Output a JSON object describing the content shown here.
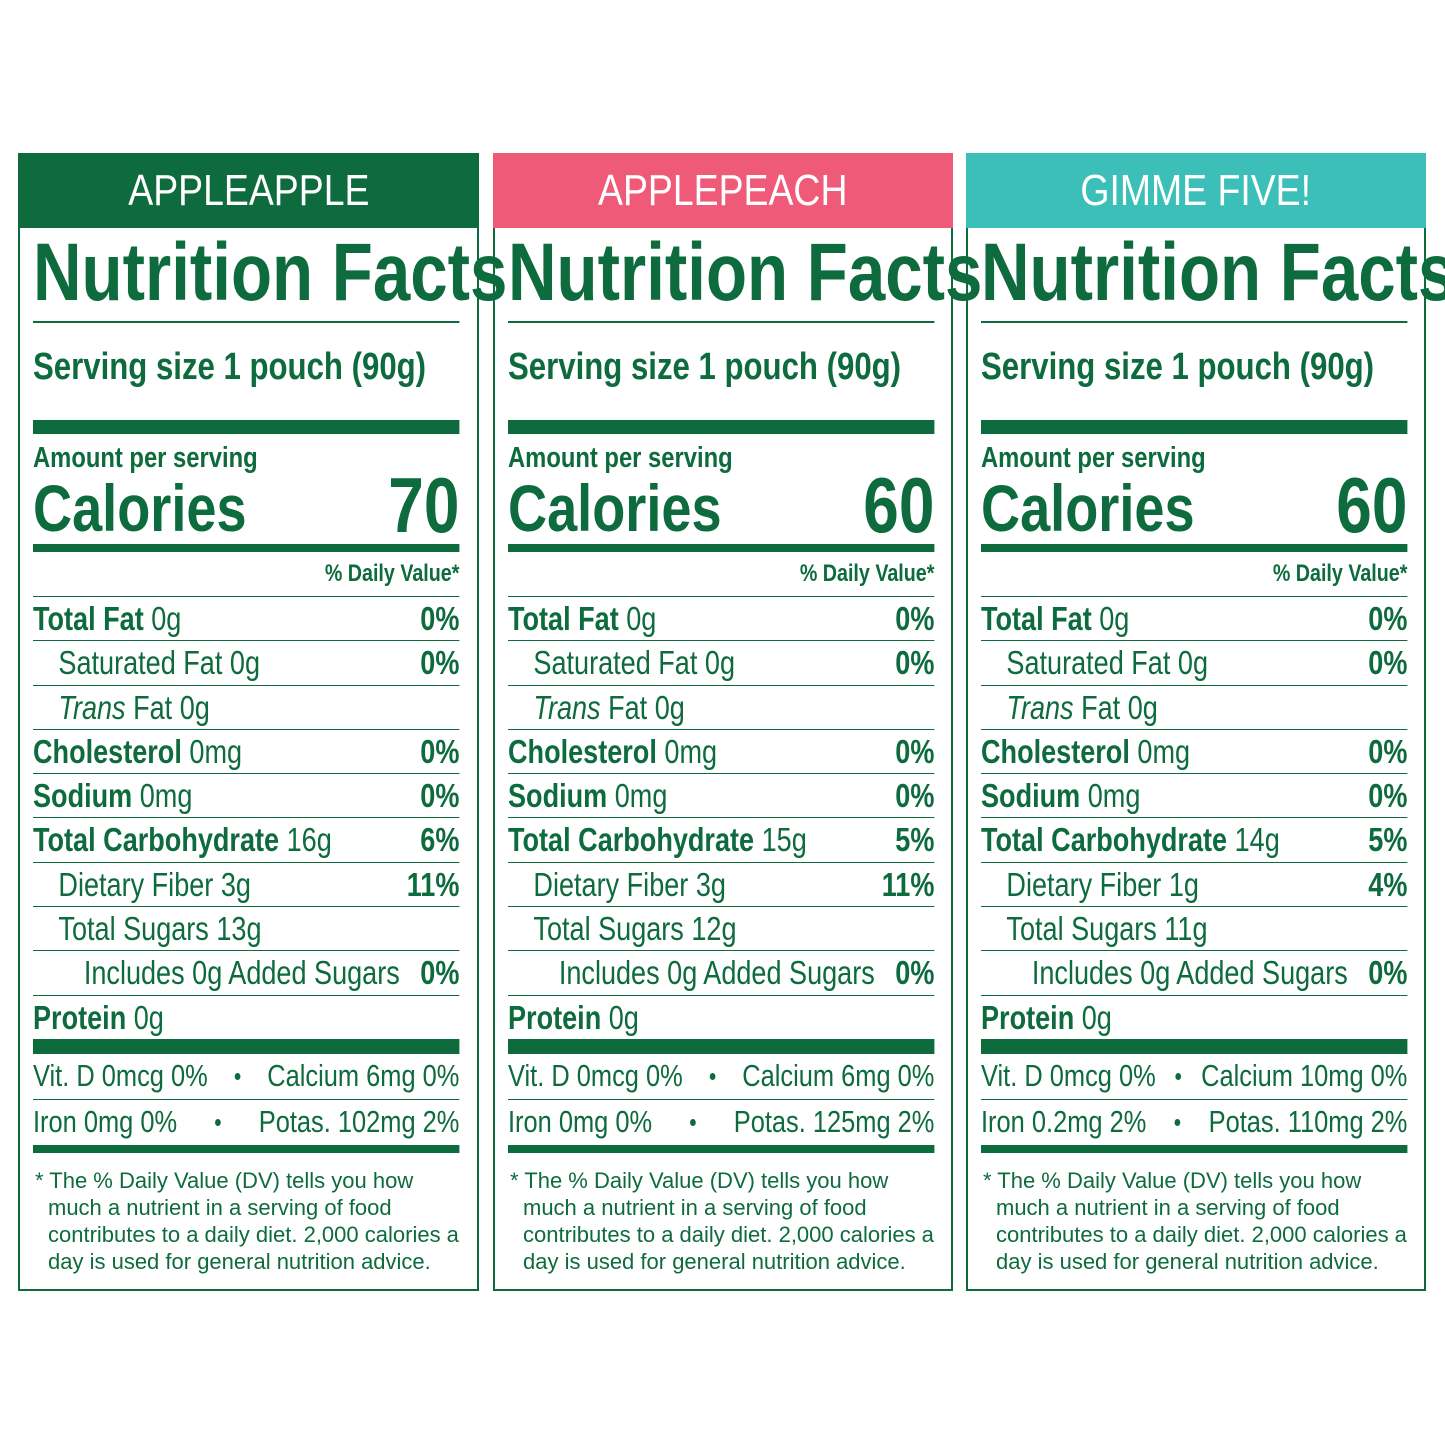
{
  "panels": [
    {
      "header": "APPLEAPPLE",
      "title": "Nutrition Facts",
      "serving_size": "Serving size 1 pouch (90g)",
      "amount_per_serving": "Amount per serving",
      "calories_label": "Calories",
      "calories": 70,
      "dv_header": "% Daily Value*",
      "rows": [
        {
          "label": "Total Fat",
          "amount": "0g",
          "dv": "0%"
        },
        {
          "label": "Saturated Fat",
          "amount": "0g",
          "dv": "0%"
        },
        {
          "label": "Trans Fat",
          "amount": "0g"
        },
        {
          "label": "Cholesterol",
          "amount": "0mg",
          "dv": "0%"
        },
        {
          "label": "Sodium",
          "amount": "0mg",
          "dv": "0%"
        },
        {
          "label": "Total Carbohydrate",
          "amount": "16g",
          "dv": "6%"
        },
        {
          "label": "Dietary Fiber",
          "amount": "3g",
          "dv": "11%"
        },
        {
          "label": "Total Sugars",
          "amount": "13g"
        },
        {
          "label": "Includes 0g Added Sugars",
          "dv": "0%"
        },
        {
          "label": "Protein",
          "amount": "0g"
        }
      ],
      "vitamins": [
        [
          "Vit. D 0mcg 0%",
          "Calcium 6mg 0%"
        ],
        [
          "Iron 0mg 0%",
          "Potas. 102mg 2%"
        ]
      ],
      "footnote": "* The % Daily Value (DV) tells you how much a nutrient in a serving of food contributes to a daily diet. 2,000 calories a day is used for general nutrition advice."
    },
    {
      "header": "APPLEPEACH",
      "title": "Nutrition Facts",
      "serving_size": "Serving size 1 pouch (90g)",
      "amount_per_serving": "Amount per serving",
      "calories_label": "Calories",
      "calories": 60,
      "dv_header": "% Daily Value*",
      "rows": [
        {
          "label": "Total Fat",
          "amount": "0g",
          "dv": "0%"
        },
        {
          "label": "Saturated Fat",
          "amount": "0g",
          "dv": "0%"
        },
        {
          "label": "Trans Fat",
          "amount": "0g"
        },
        {
          "label": "Cholesterol",
          "amount": "0mg",
          "dv": "0%"
        },
        {
          "label": "Sodium",
          "amount": "0mg",
          "dv": "0%"
        },
        {
          "label": "Total Carbohydrate",
          "amount": "15g",
          "dv": "5%"
        },
        {
          "label": "Dietary Fiber",
          "amount": "3g",
          "dv": "11%"
        },
        {
          "label": "Total Sugars",
          "amount": "12g"
        },
        {
          "label": "Includes 0g Added Sugars",
          "dv": "0%"
        },
        {
          "label": "Protein",
          "amount": "0g"
        }
      ],
      "vitamins": [
        [
          "Vit. D 0mcg 0%",
          "Calcium 6mg 0%"
        ],
        [
          "Iron 0mg 0%",
          "Potas. 125mg 2%"
        ]
      ],
      "footnote": "* The % Daily Value (DV) tells you how much a nutrient in a serving of food contributes to a daily diet. 2,000 calories a day is used for general nutrition advice."
    },
    {
      "header": "GIMME FIVE!",
      "title": "Nutrition Facts",
      "serving_size": "Serving size 1 pouch (90g)",
      "amount_per_serving": "Amount per serving",
      "calories_label": "Calories",
      "calories": 60,
      "dv_header": "% Daily Value*",
      "rows": [
        {
          "label": "Total Fat",
          "amount": "0g",
          "dv": "0%"
        },
        {
          "label": "Saturated Fat",
          "amount": "0g",
          "dv": "0%"
        },
        {
          "label": "Trans Fat",
          "amount": "0g"
        },
        {
          "label": "Cholesterol",
          "amount": "0mg",
          "dv": "0%"
        },
        {
          "label": "Sodium",
          "amount": "0mg",
          "dv": "0%"
        },
        {
          "label": "Total Carbohydrate",
          "amount": "14g",
          "dv": "5%"
        },
        {
          "label": "Dietary Fiber",
          "amount": "1g",
          "dv": "4%"
        },
        {
          "label": "Total Sugars",
          "amount": "11g"
        },
        {
          "label": "Includes 0g Added Sugars",
          "dv": "0%"
        },
        {
          "label": "Protein",
          "amount": "0g"
        }
      ],
      "vitamins": [
        [
          "Vit. D 0mcg 0%",
          "Calcium 10mg 0%"
        ],
        [
          "Iron 0.2mg 2%",
          "Potas. 110mg 2%"
        ]
      ],
      "footnote": "* The % Daily Value (DV) tells you how much a nutrient in a serving of food contributes to a daily diet. 2,000 calories a day is used for general nutrition advice."
    }
  ]
}
